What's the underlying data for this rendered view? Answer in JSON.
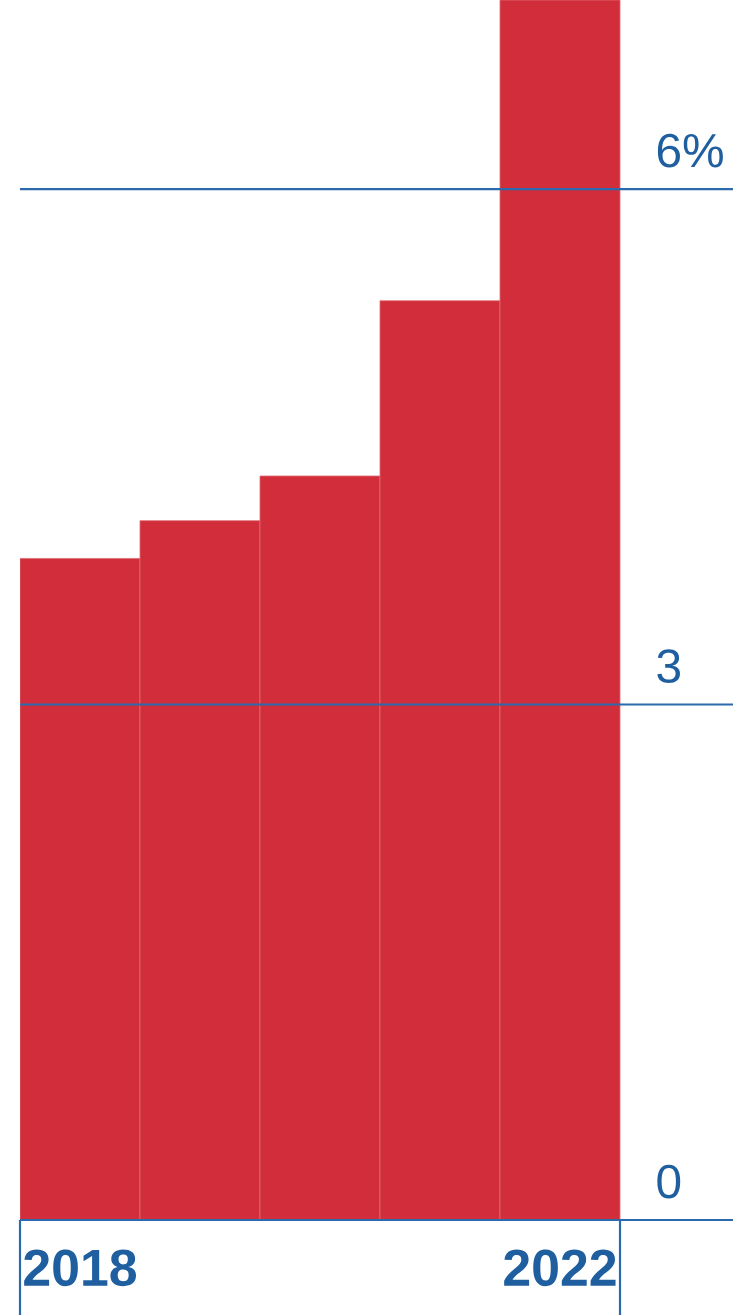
{
  "chart_data": {
    "type": "bar",
    "categories": [
      "2018",
      null,
      null,
      null,
      "2022"
    ],
    "values": [
      3.85,
      4.07,
      4.33,
      5.35,
      7.1
    ],
    "color": "#d12d3a",
    "ylim": [
      0,
      7.1
    ],
    "yticks": [
      0,
      3,
      {
        "value": 6,
        "label": "6%"
      }
    ],
    "grid": "y"
  }
}
